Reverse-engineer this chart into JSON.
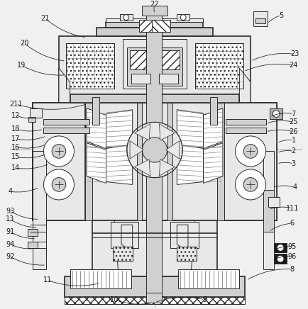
{
  "bg_color": "#f0f0f0",
  "line_color": "#2a2a2a",
  "lw": 0.7,
  "tlw": 1.2,
  "fig_width": 4.35,
  "fig_height": 4.36,
  "dpi": 100,
  "fs": 7.0,
  "label_color": "#1a1a1a",
  "gray_light": "#e8e8e8",
  "gray_mid": "#d0d0d0",
  "gray_dark": "#b0b0b0",
  "white": "#ffffff",
  "hatch_gray": "#c8c8c8"
}
